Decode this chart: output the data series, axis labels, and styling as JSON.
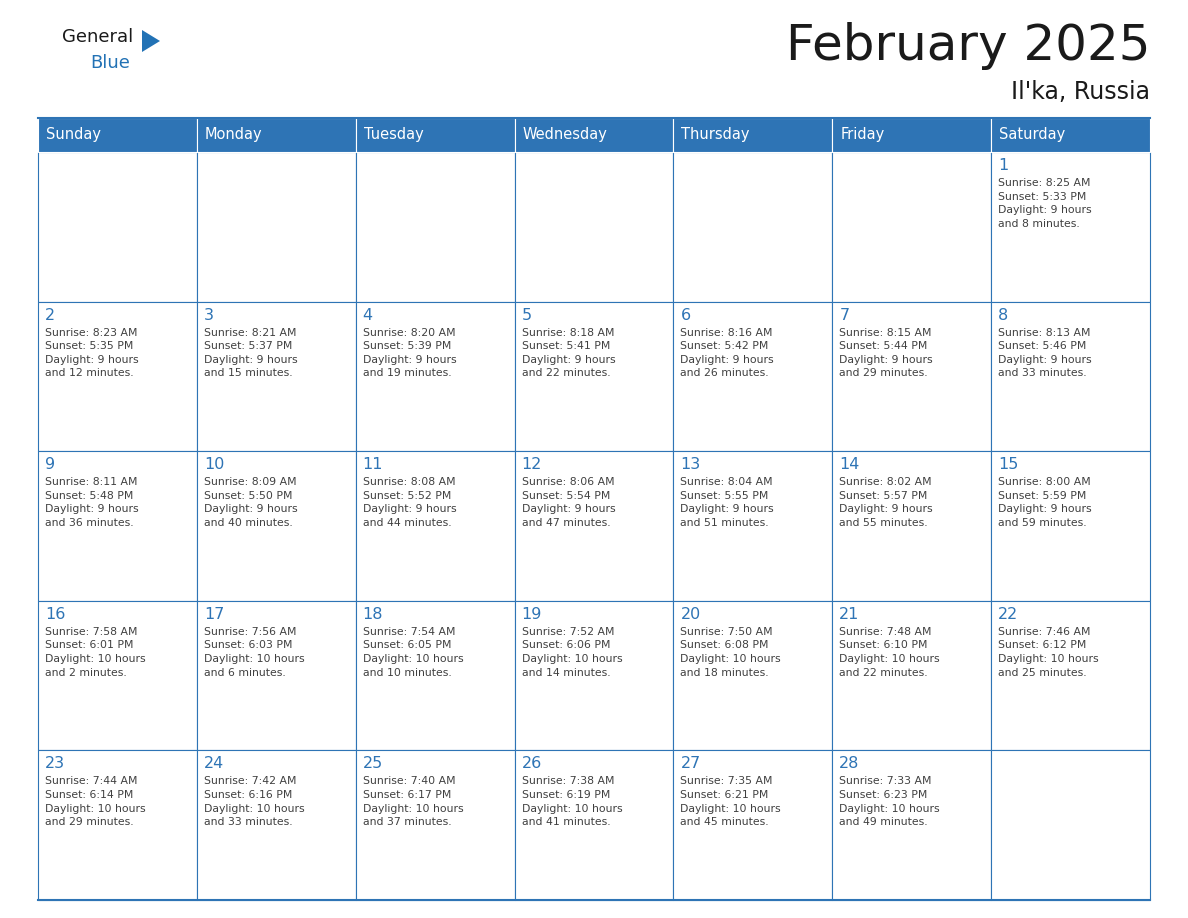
{
  "title": "February 2025",
  "subtitle": "Il'ka, Russia",
  "header_color": "#2E74B5",
  "header_text_color": "#FFFFFF",
  "cell_bg_color": "#FFFFFF",
  "border_color": "#2E74B5",
  "day_num_color": "#2E74B5",
  "text_color": "#404040",
  "days_of_week": [
    "Sunday",
    "Monday",
    "Tuesday",
    "Wednesday",
    "Thursday",
    "Friday",
    "Saturday"
  ],
  "weeks": [
    [
      {
        "day": "",
        "info": ""
      },
      {
        "day": "",
        "info": ""
      },
      {
        "day": "",
        "info": ""
      },
      {
        "day": "",
        "info": ""
      },
      {
        "day": "",
        "info": ""
      },
      {
        "day": "",
        "info": ""
      },
      {
        "day": "1",
        "info": "Sunrise: 8:25 AM\nSunset: 5:33 PM\nDaylight: 9 hours\nand 8 minutes."
      }
    ],
    [
      {
        "day": "2",
        "info": "Sunrise: 8:23 AM\nSunset: 5:35 PM\nDaylight: 9 hours\nand 12 minutes."
      },
      {
        "day": "3",
        "info": "Sunrise: 8:21 AM\nSunset: 5:37 PM\nDaylight: 9 hours\nand 15 minutes."
      },
      {
        "day": "4",
        "info": "Sunrise: 8:20 AM\nSunset: 5:39 PM\nDaylight: 9 hours\nand 19 minutes."
      },
      {
        "day": "5",
        "info": "Sunrise: 8:18 AM\nSunset: 5:41 PM\nDaylight: 9 hours\nand 22 minutes."
      },
      {
        "day": "6",
        "info": "Sunrise: 8:16 AM\nSunset: 5:42 PM\nDaylight: 9 hours\nand 26 minutes."
      },
      {
        "day": "7",
        "info": "Sunrise: 8:15 AM\nSunset: 5:44 PM\nDaylight: 9 hours\nand 29 minutes."
      },
      {
        "day": "8",
        "info": "Sunrise: 8:13 AM\nSunset: 5:46 PM\nDaylight: 9 hours\nand 33 minutes."
      }
    ],
    [
      {
        "day": "9",
        "info": "Sunrise: 8:11 AM\nSunset: 5:48 PM\nDaylight: 9 hours\nand 36 minutes."
      },
      {
        "day": "10",
        "info": "Sunrise: 8:09 AM\nSunset: 5:50 PM\nDaylight: 9 hours\nand 40 minutes."
      },
      {
        "day": "11",
        "info": "Sunrise: 8:08 AM\nSunset: 5:52 PM\nDaylight: 9 hours\nand 44 minutes."
      },
      {
        "day": "12",
        "info": "Sunrise: 8:06 AM\nSunset: 5:54 PM\nDaylight: 9 hours\nand 47 minutes."
      },
      {
        "day": "13",
        "info": "Sunrise: 8:04 AM\nSunset: 5:55 PM\nDaylight: 9 hours\nand 51 minutes."
      },
      {
        "day": "14",
        "info": "Sunrise: 8:02 AM\nSunset: 5:57 PM\nDaylight: 9 hours\nand 55 minutes."
      },
      {
        "day": "15",
        "info": "Sunrise: 8:00 AM\nSunset: 5:59 PM\nDaylight: 9 hours\nand 59 minutes."
      }
    ],
    [
      {
        "day": "16",
        "info": "Sunrise: 7:58 AM\nSunset: 6:01 PM\nDaylight: 10 hours\nand 2 minutes."
      },
      {
        "day": "17",
        "info": "Sunrise: 7:56 AM\nSunset: 6:03 PM\nDaylight: 10 hours\nand 6 minutes."
      },
      {
        "day": "18",
        "info": "Sunrise: 7:54 AM\nSunset: 6:05 PM\nDaylight: 10 hours\nand 10 minutes."
      },
      {
        "day": "19",
        "info": "Sunrise: 7:52 AM\nSunset: 6:06 PM\nDaylight: 10 hours\nand 14 minutes."
      },
      {
        "day": "20",
        "info": "Sunrise: 7:50 AM\nSunset: 6:08 PM\nDaylight: 10 hours\nand 18 minutes."
      },
      {
        "day": "21",
        "info": "Sunrise: 7:48 AM\nSunset: 6:10 PM\nDaylight: 10 hours\nand 22 minutes."
      },
      {
        "day": "22",
        "info": "Sunrise: 7:46 AM\nSunset: 6:12 PM\nDaylight: 10 hours\nand 25 minutes."
      }
    ],
    [
      {
        "day": "23",
        "info": "Sunrise: 7:44 AM\nSunset: 6:14 PM\nDaylight: 10 hours\nand 29 minutes."
      },
      {
        "day": "24",
        "info": "Sunrise: 7:42 AM\nSunset: 6:16 PM\nDaylight: 10 hours\nand 33 minutes."
      },
      {
        "day": "25",
        "info": "Sunrise: 7:40 AM\nSunset: 6:17 PM\nDaylight: 10 hours\nand 37 minutes."
      },
      {
        "day": "26",
        "info": "Sunrise: 7:38 AM\nSunset: 6:19 PM\nDaylight: 10 hours\nand 41 minutes."
      },
      {
        "day": "27",
        "info": "Sunrise: 7:35 AM\nSunset: 6:21 PM\nDaylight: 10 hours\nand 45 minutes."
      },
      {
        "day": "28",
        "info": "Sunrise: 7:33 AM\nSunset: 6:23 PM\nDaylight: 10 hours\nand 49 minutes."
      },
      {
        "day": "",
        "info": ""
      }
    ]
  ]
}
